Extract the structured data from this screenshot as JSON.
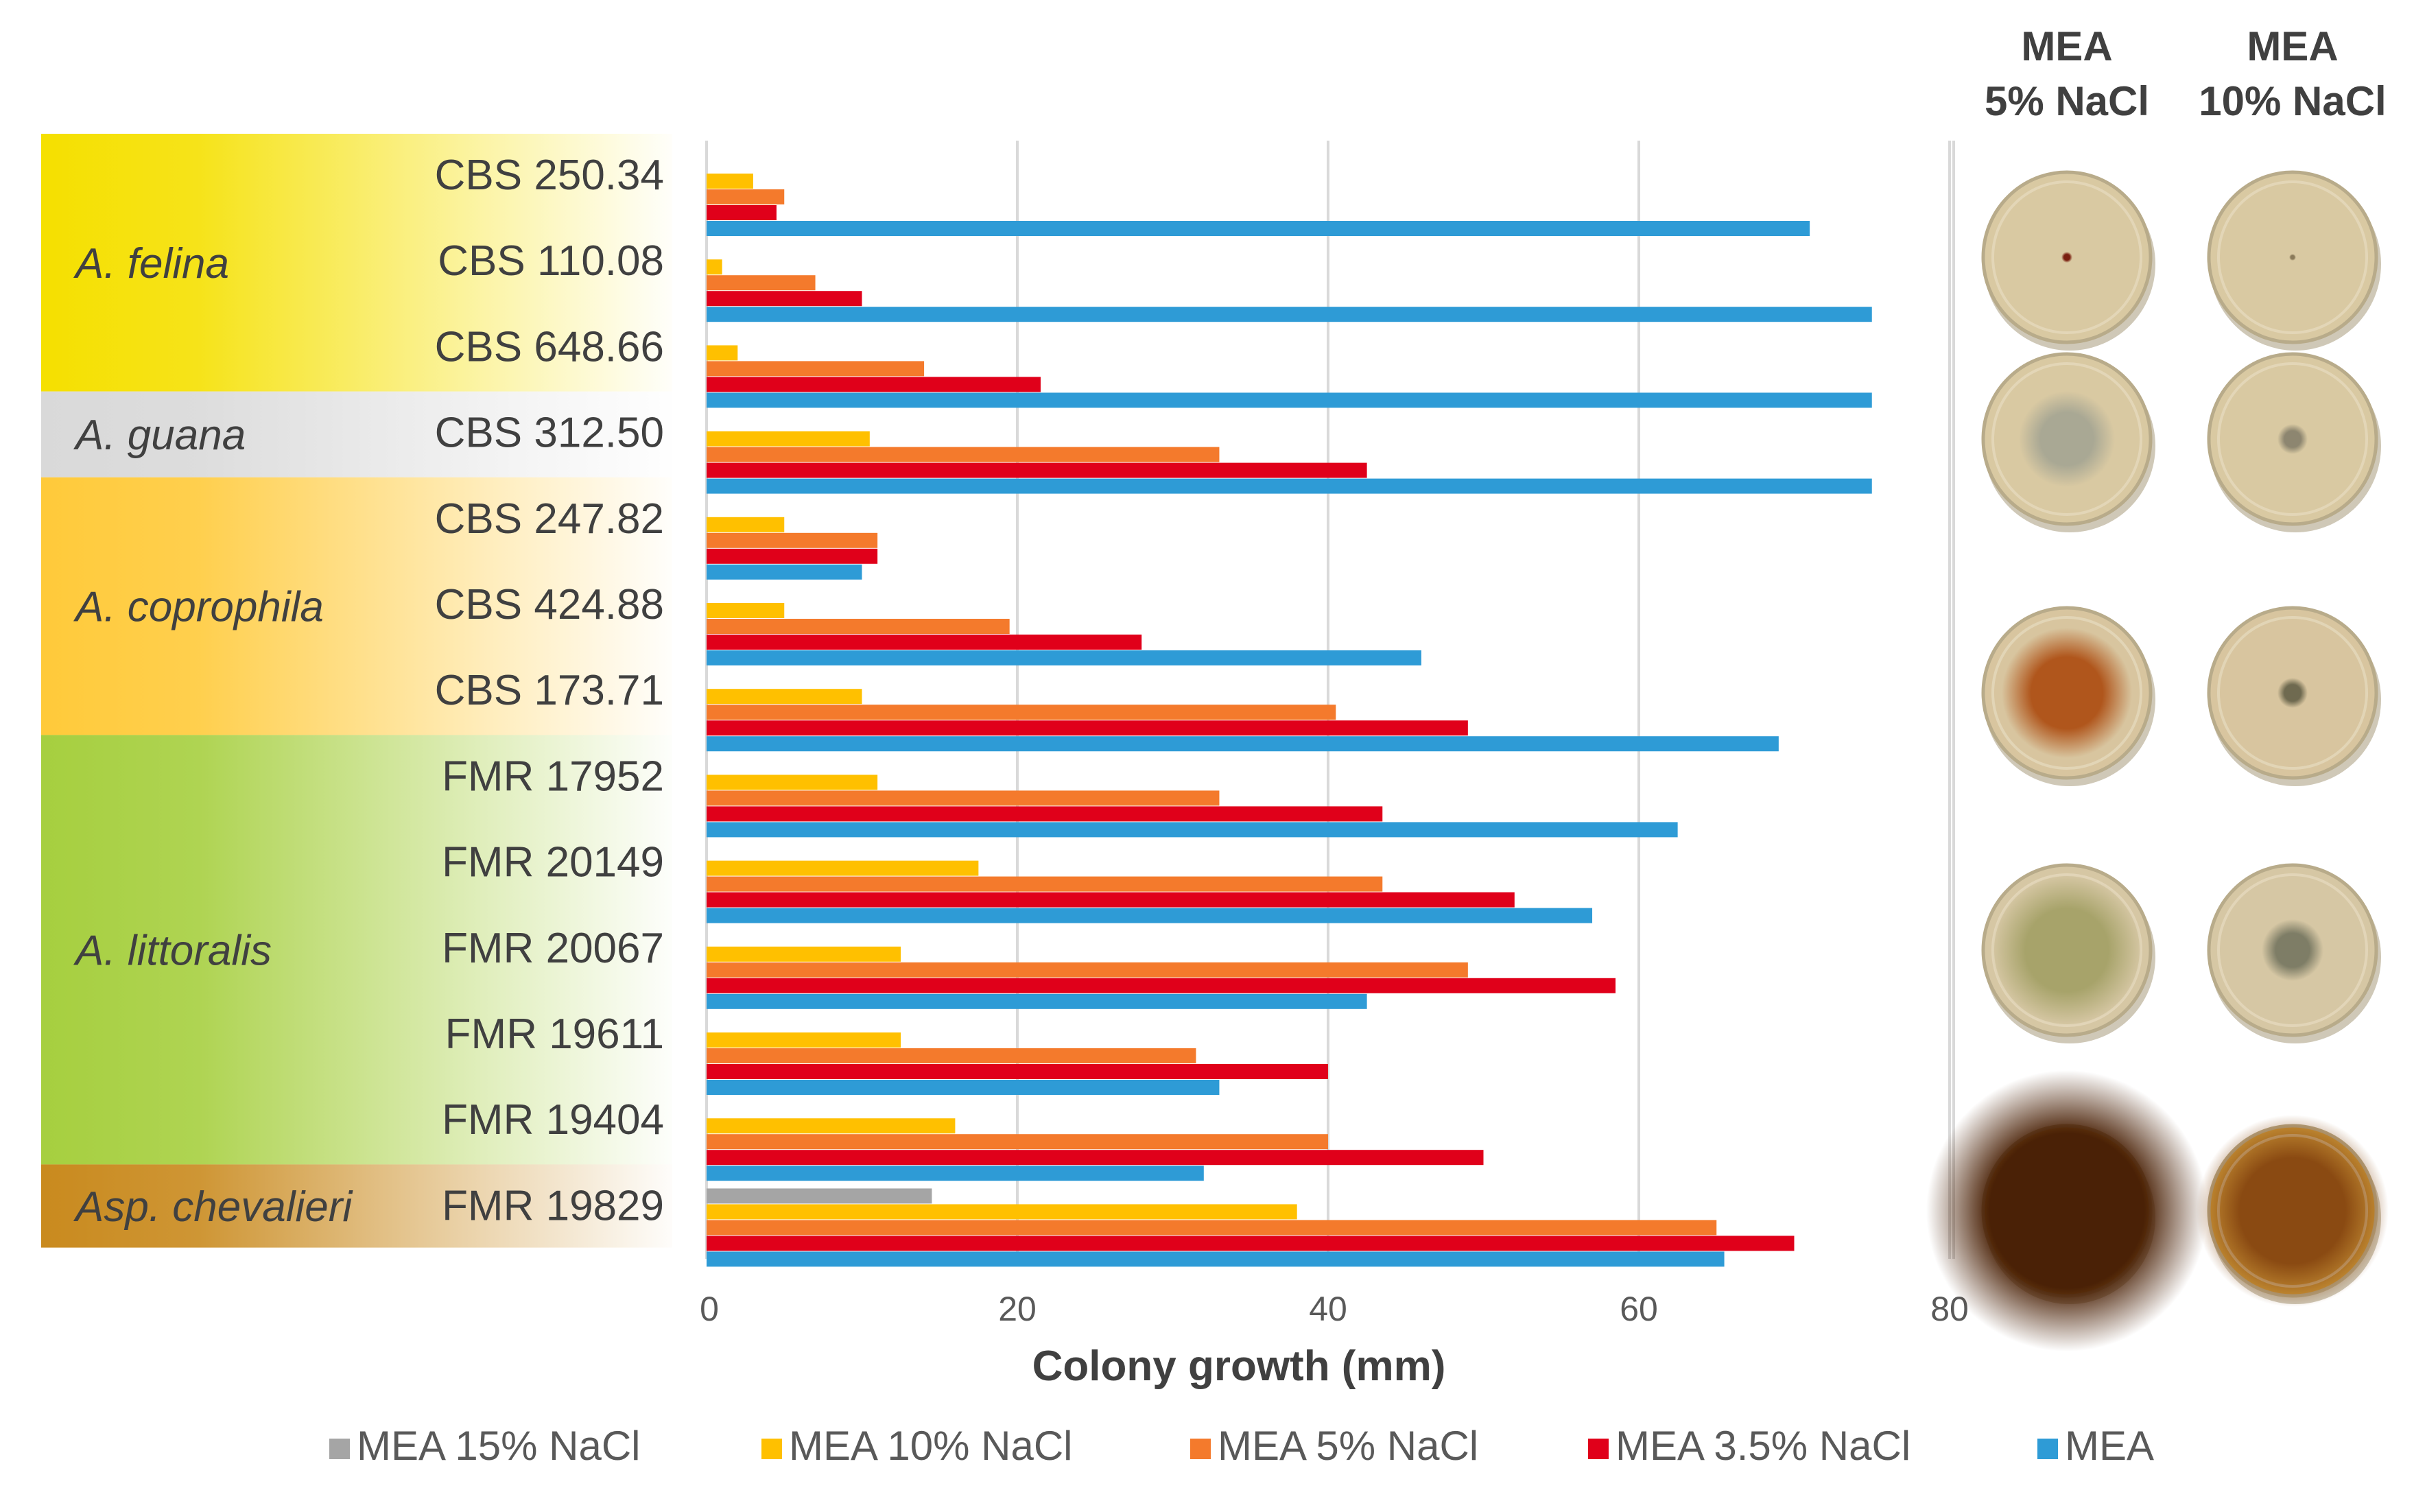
{
  "chart_data": {
    "type": "bar",
    "orientation": "horizontal",
    "title": "",
    "xlabel": "Colony growth (mm)",
    "ylabel": "",
    "xlim": [
      0,
      80
    ],
    "x_ticks": [
      "0",
      "20",
      "40",
      "60",
      "80"
    ],
    "grid": true,
    "legend_position": "bottom",
    "categories": [
      "CBS 250.34",
      "CBS 110.08",
      "CBS 648.66",
      "CBS 312.50",
      "CBS 247.82",
      "CBS 424.88",
      "CBS 173.71",
      "FMR 17952",
      "FMR 20149",
      "FMR 20067",
      "FMR 19611",
      "FMR 19404",
      "FMR 19829"
    ],
    "groups": [
      {
        "name": "A. felina",
        "strains": [
          0,
          1,
          2
        ],
        "color": "#f5e000"
      },
      {
        "name": "A. guana",
        "strains": [
          3
        ],
        "color": "#d9d9d9"
      },
      {
        "name": "A. coprophila",
        "strains": [
          4,
          5,
          6
        ],
        "color": "#ffca3a"
      },
      {
        "name": "A. littoralis",
        "strains": [
          7,
          8,
          9,
          10,
          11
        ],
        "color": "#a6cf3f"
      },
      {
        "name": "Asp. chevalieri",
        "strains": [
          12
        ],
        "color": "#c98a1e"
      }
    ],
    "series": [
      {
        "name": "MEA 15% NaCl",
        "color": "#a5a5a5",
        "values": [
          0,
          0,
          0,
          0,
          0,
          0,
          0,
          0,
          0,
          0,
          0,
          0,
          14.5
        ]
      },
      {
        "name": "MEA 10% NaCl",
        "color": "#ffc000",
        "values": [
          3,
          1,
          2,
          10.5,
          5,
          5,
          10,
          11,
          17.5,
          12.5,
          12.5,
          16,
          38
        ]
      },
      {
        "name": "MEA 5% NaCl",
        "color": "#f47a2c",
        "values": [
          5,
          7,
          14,
          33,
          11,
          19.5,
          40.5,
          33,
          43.5,
          49,
          31.5,
          40,
          65
        ]
      },
      {
        "name": "MEA 3.5% NaCl",
        "color": "#e0001a",
        "values": [
          4.5,
          10,
          21.5,
          42.5,
          11,
          28,
          49,
          43.5,
          52,
          58.5,
          40,
          50,
          70
        ]
      },
      {
        "name": "MEA",
        "color": "#2e9bd6",
        "values": [
          71,
          75,
          75,
          75,
          10,
          46,
          69,
          62.5,
          57,
          42.5,
          33,
          32,
          65.5
        ]
      }
    ],
    "plates": {
      "column_headers": [
        [
          "MEA",
          "5% NaCl"
        ],
        [
          "MEA",
          "10% NaCl"
        ]
      ],
      "rows": [
        {
          "strain_index": 1,
          "label": "A. felina plates"
        },
        {
          "strain_index": 3,
          "label": "A. guana plates"
        },
        {
          "strain_index": 6,
          "label": "A. coprophila plates"
        },
        {
          "strain_index": 9,
          "label": "A. littoralis plates"
        },
        {
          "strain_index": 12,
          "label": "Asp. chevalieri plates"
        }
      ]
    }
  }
}
